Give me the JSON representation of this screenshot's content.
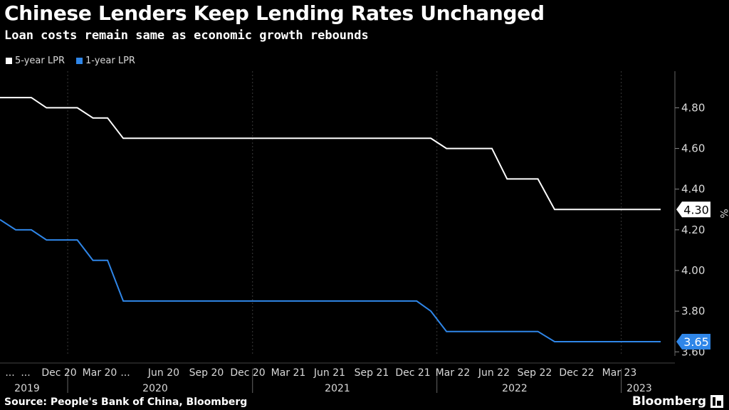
{
  "header": {
    "title": "Chinese Lenders Keep Lending Rates Unchanged",
    "subtitle": "Loan costs remain same as economic growth rebounds"
  },
  "footer": {
    "source": "Source: People's Bank of China, Bloomberg",
    "brand": "Bloomberg"
  },
  "chart_data": {
    "type": "line",
    "ylabel": "%",
    "ylim": [
      3.58,
      4.98
    ],
    "yticks": [
      "4.80",
      "4.60",
      "4.40",
      "4.20",
      "4.00",
      "3.80",
      "3.60"
    ],
    "y_axis_side": "right",
    "grid": "vertical dashed at year boundaries",
    "legend_position": "top-left",
    "x_tick_labels": [
      "...",
      "...",
      "Dec 20",
      "Mar 20",
      "...",
      "Jun 20",
      "Sep 20",
      "Dec 20",
      "Mar 21",
      "Jun 21",
      "Sep 21",
      "Dec 21",
      "Mar 22",
      "Jun 22",
      "Sep 22",
      "Dec 22",
      "Mar 23"
    ],
    "x_year_labels": [
      "2019",
      "2020",
      "2021",
      "2022",
      "2023"
    ],
    "x": [
      "2019-08-20",
      "2019-09-20",
      "2019-10-21",
      "2019-11-20",
      "2019-12-20",
      "2020-01-20",
      "2020-02-20",
      "2020-03-20",
      "2020-04-20",
      "2020-05-20",
      "2020-06-22",
      "2020-07-20",
      "2020-08-20",
      "2020-09-21",
      "2020-10-20",
      "2020-11-20",
      "2020-12-21",
      "2021-01-20",
      "2021-02-22",
      "2021-03-22",
      "2021-04-20",
      "2021-05-20",
      "2021-06-21",
      "2021-07-20",
      "2021-08-20",
      "2021-09-22",
      "2021-10-20",
      "2021-11-22",
      "2021-12-20",
      "2022-01-20",
      "2022-02-21",
      "2022-03-21",
      "2022-04-20",
      "2022-05-20",
      "2022-06-20",
      "2022-07-20",
      "2022-08-22",
      "2022-09-20",
      "2022-10-20",
      "2022-11-21",
      "2022-12-20",
      "2023-01-20",
      "2023-02-20",
      "2023-03-20"
    ],
    "series": [
      {
        "name": "5-year LPR",
        "color": "#ffffff",
        "last_value_label": "4.30",
        "values": [
          4.85,
          4.85,
          4.85,
          4.8,
          4.8,
          4.8,
          4.75,
          4.75,
          4.65,
          4.65,
          4.65,
          4.65,
          4.65,
          4.65,
          4.65,
          4.65,
          4.65,
          4.65,
          4.65,
          4.65,
          4.65,
          4.65,
          4.65,
          4.65,
          4.65,
          4.65,
          4.65,
          4.65,
          4.65,
          4.6,
          4.6,
          4.6,
          4.6,
          4.45,
          4.45,
          4.45,
          4.3,
          4.3,
          4.3,
          4.3,
          4.3,
          4.3,
          4.3,
          4.3
        ]
      },
      {
        "name": "1-year LPR",
        "color": "#2f86e8",
        "last_value_label": "3.65",
        "values": [
          4.25,
          4.2,
          4.2,
          4.15,
          4.15,
          4.15,
          4.05,
          4.05,
          3.85,
          3.85,
          3.85,
          3.85,
          3.85,
          3.85,
          3.85,
          3.85,
          3.85,
          3.85,
          3.85,
          3.85,
          3.85,
          3.85,
          3.85,
          3.85,
          3.85,
          3.85,
          3.85,
          3.85,
          3.8,
          3.7,
          3.7,
          3.7,
          3.7,
          3.7,
          3.7,
          3.7,
          3.65,
          3.65,
          3.65,
          3.65,
          3.65,
          3.65,
          3.65,
          3.65
        ]
      }
    ]
  }
}
